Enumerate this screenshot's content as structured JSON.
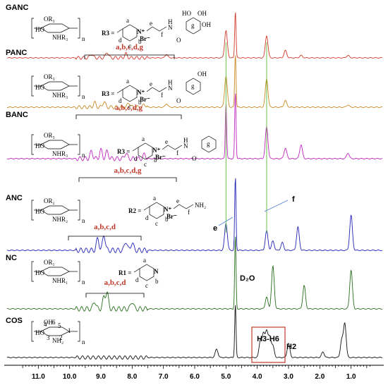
{
  "chart_data": {
    "type": "line",
    "xlabel": "",
    "ylabel": "",
    "xlim": [
      12.0,
      0.0
    ],
    "x_reversed": true,
    "x_ticks": [
      "11.0",
      "10.0",
      "9.0",
      "8.0",
      "7.0",
      "6.0",
      "5.0",
      "4.0",
      "3.0",
      "2.0",
      "1.0"
    ],
    "x_tick_values": [
      11,
      10,
      9,
      8,
      7,
      6,
      5,
      4,
      3,
      2,
      1
    ],
    "series": [
      {
        "name": "GANC",
        "color": "#d03a2a",
        "assignment": "a,b,c,d,g",
        "substituent": "R3 =",
        "counterion": "Br⁻",
        "peaks": [
          [
            9.3,
            0.08
          ],
          [
            8.8,
            0.12
          ],
          [
            8.2,
            0.08
          ],
          [
            6.9,
            0.07
          ],
          [
            5.0,
            0.55
          ],
          [
            4.7,
            0.95
          ],
          [
            3.7,
            0.45
          ],
          [
            3.1,
            0.15
          ],
          [
            2.6,
            0.05
          ],
          [
            1.1,
            0.05
          ]
        ]
      },
      {
        "name": "PANC",
        "color": "#c98a24",
        "assignment": "a,b,c,d,g",
        "substituent": "R3 =",
        "counterion": "Br⁻",
        "peaks": [
          [
            9.2,
            0.08
          ],
          [
            8.9,
            0.1
          ],
          [
            8.1,
            0.08
          ],
          [
            7.6,
            0.05
          ],
          [
            6.9,
            0.06
          ],
          [
            5.0,
            0.55
          ],
          [
            4.7,
            0.95
          ],
          [
            3.7,
            0.5
          ],
          [
            3.1,
            0.12
          ],
          [
            1.1,
            0.04
          ]
        ]
      },
      {
        "name": "BANC",
        "color": "#c026c0",
        "assignment": "a,b,c,d,g",
        "substituent": "R3 =",
        "counterion": "Br⁻",
        "peaks": [
          [
            9.3,
            0.1
          ],
          [
            9.0,
            0.12
          ],
          [
            8.8,
            0.1
          ],
          [
            8.2,
            0.08
          ],
          [
            7.6,
            0.06
          ],
          [
            5.0,
            0.8
          ],
          [
            4.7,
            0.95
          ],
          [
            3.7,
            0.45
          ],
          [
            3.1,
            0.15
          ],
          [
            2.6,
            0.2
          ],
          [
            1.1,
            0.08
          ]
        ]
      },
      {
        "name": "ANC",
        "color": "#2323b8",
        "assignment": "a,b,c,d",
        "substituent": "R2 =",
        "substituent_group": "NH₂",
        "counterion": "Br⁻",
        "annotation_e": "e",
        "annotation_f": "f",
        "peaks": [
          [
            9.1,
            0.15
          ],
          [
            8.9,
            0.2
          ],
          [
            8.2,
            0.12
          ],
          [
            8.0,
            0.1
          ],
          [
            5.0,
            0.35
          ],
          [
            4.7,
            0.95
          ],
          [
            3.7,
            0.25
          ],
          [
            3.5,
            0.12
          ],
          [
            3.2,
            0.1
          ],
          [
            2.7,
            0.3
          ],
          [
            1.0,
            0.45
          ]
        ]
      },
      {
        "name": "NC",
        "color": "#2a6e1e",
        "assignment": "a,b,c,d",
        "substituent": "R1 =",
        "solvent": "D₂O",
        "peaks": [
          [
            9.2,
            0.1
          ],
          [
            8.9,
            0.15
          ],
          [
            8.8,
            0.2
          ],
          [
            8.0,
            0.1
          ],
          [
            4.7,
            0.95
          ],
          [
            3.7,
            0.15
          ],
          [
            3.5,
            0.55
          ],
          [
            2.5,
            0.3
          ],
          [
            1.0,
            0.5
          ]
        ]
      },
      {
        "name": "COS",
        "color": "#111111",
        "assignment": "H3-H6",
        "assignment2": "H2",
        "peaks": [
          [
            5.3,
            0.15
          ],
          [
            4.7,
            0.95
          ],
          [
            3.9,
            0.3
          ],
          [
            3.8,
            0.4
          ],
          [
            3.7,
            0.45
          ],
          [
            3.6,
            0.35
          ],
          [
            3.5,
            0.2
          ],
          [
            3.0,
            0.25
          ],
          [
            1.9,
            0.1
          ],
          [
            1.3,
            0.3
          ],
          [
            1.2,
            0.6
          ]
        ]
      }
    ],
    "guide_lines": [
      5.0,
      3.7
    ],
    "guide_color": "#6cc04a"
  },
  "structure_text": {
    "n": "n",
    "ho": "HO",
    "oh": "OH",
    "nh2": "NH₂",
    "or1": "OR₁",
    "nhr1": "NHR₁",
    "or2": "OR₂",
    "nhr2": "NHR₂",
    "or3": "OR₃",
    "nhr3": "NHR₃",
    "ring_a": "a",
    "ring_b": "b",
    "ring_c": "c",
    "ring_d": "d",
    "ring_e": "e",
    "ring_f": "f",
    "ring_g": "g",
    "nplus": "N⁺",
    "n_atom": "N",
    "h": "H",
    "o": "O",
    "cos_nums": [
      "4",
      "6",
      "5",
      "3",
      "2",
      "1"
    ]
  }
}
